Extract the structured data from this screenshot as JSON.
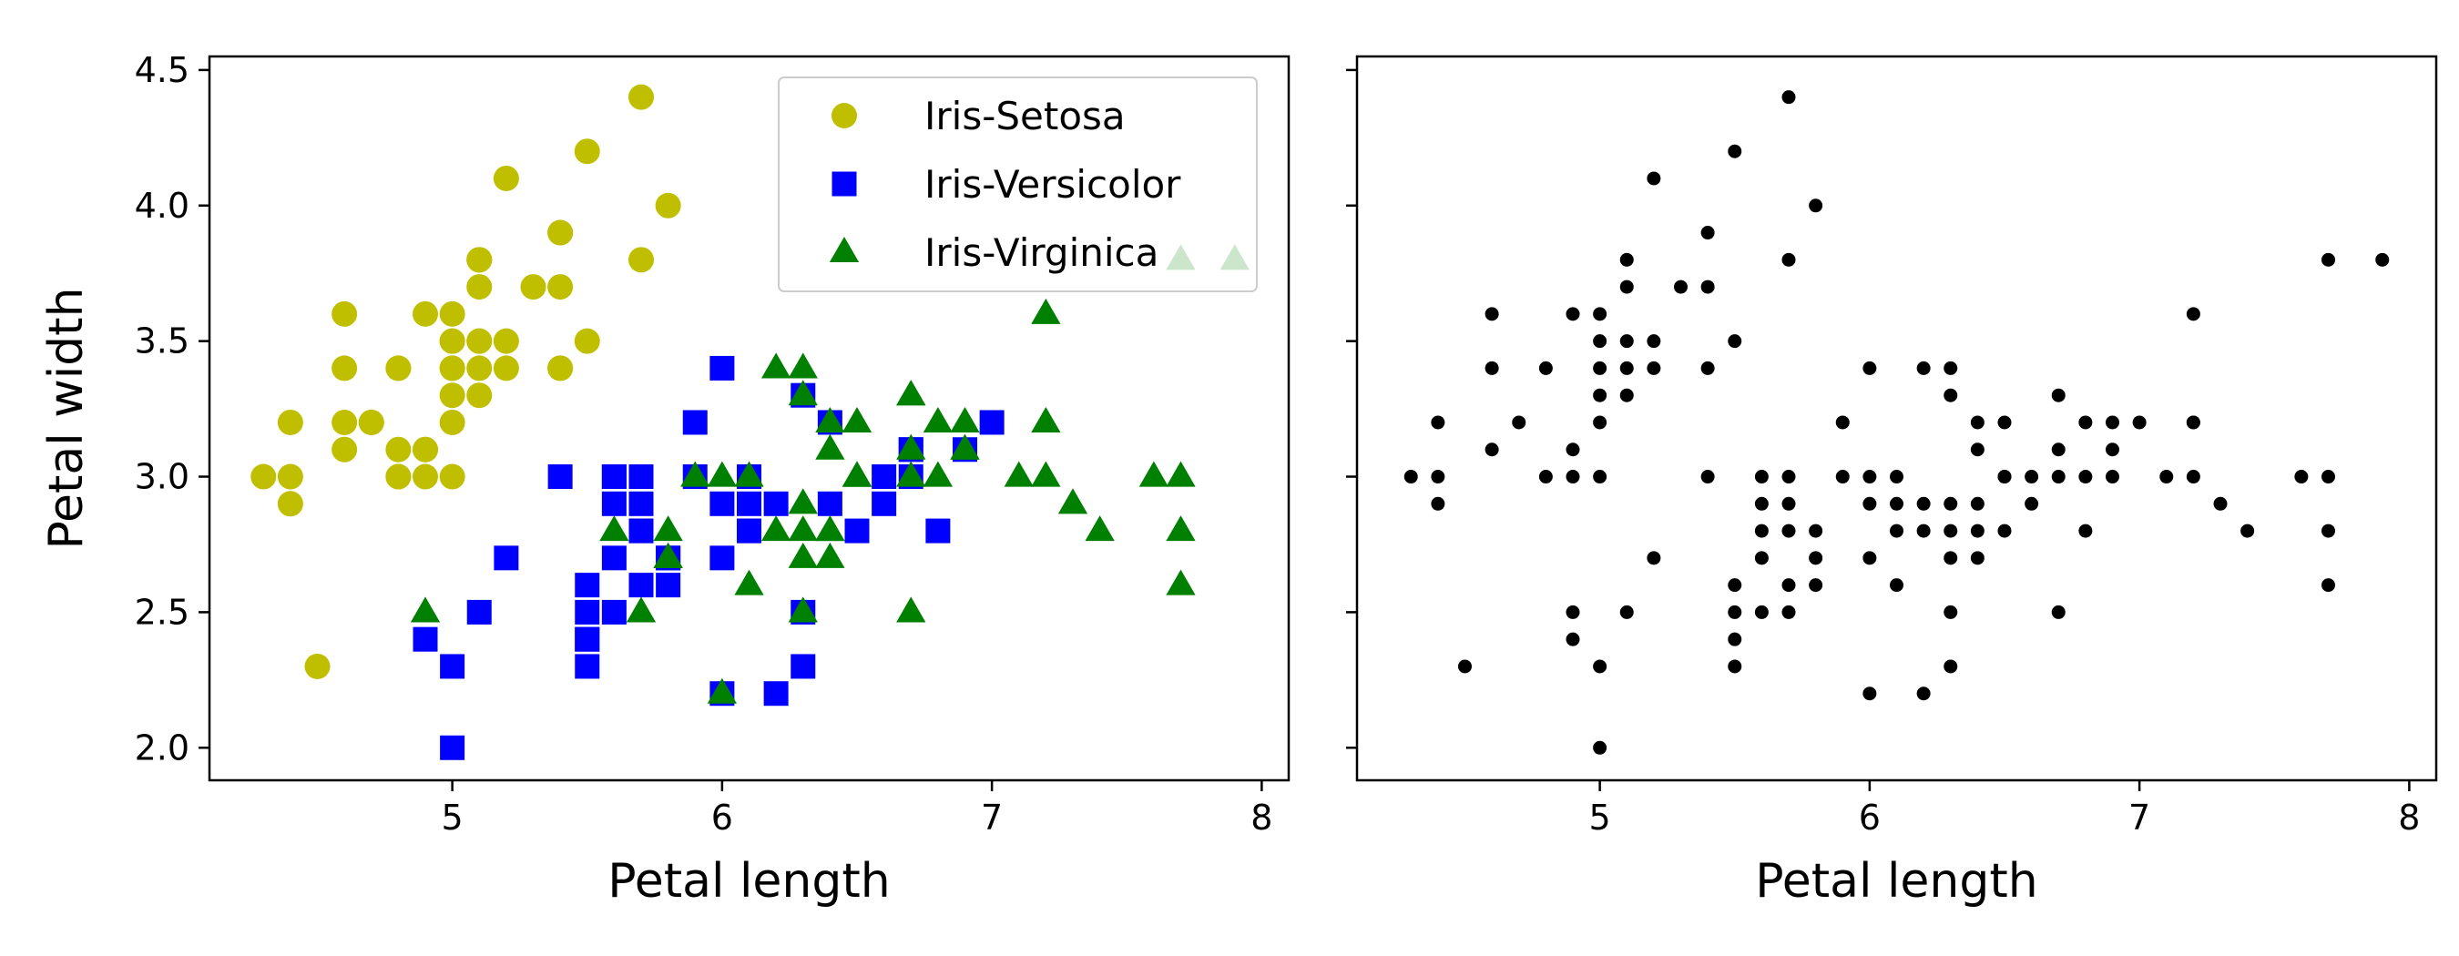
{
  "colors": {
    "setosa": "#bfbf00",
    "versicolor": "#0000ff",
    "virginica": "#008000",
    "unlabeled": "#000000",
    "frame": "#000000",
    "background": "#ffffff"
  },
  "chart_data": [
    {
      "type": "scatter",
      "xlabel": "Petal length",
      "ylabel": "Petal width",
      "xlim": [
        4.1,
        8.1
      ],
      "ylim": [
        1.88,
        4.55
      ],
      "xticks": [
        5,
        6,
        7,
        8
      ],
      "xtick_labels": [
        "5",
        "6",
        "7",
        "8"
      ],
      "yticks": [
        2.0,
        2.5,
        3.0,
        3.5,
        4.0,
        4.5
      ],
      "ytick_labels": [
        "2.0",
        "2.5",
        "3.0",
        "3.5",
        "4.0",
        "4.5"
      ],
      "grid": false,
      "legend_position": "top-right",
      "series": [
        {
          "name": "Iris-Setosa",
          "marker": "circle",
          "color_key": "setosa",
          "points": [
            [
              5.1,
              3.5
            ],
            [
              4.9,
              3.0
            ],
            [
              4.7,
              3.2
            ],
            [
              4.6,
              3.1
            ],
            [
              5.0,
              3.6
            ],
            [
              5.4,
              3.9
            ],
            [
              4.6,
              3.4
            ],
            [
              5.0,
              3.4
            ],
            [
              4.4,
              2.9
            ],
            [
              4.9,
              3.1
            ],
            [
              5.4,
              3.7
            ],
            [
              4.8,
              3.4
            ],
            [
              4.8,
              3.0
            ],
            [
              4.3,
              3.0
            ],
            [
              5.8,
              4.0
            ],
            [
              5.7,
              4.4
            ],
            [
              5.4,
              3.9
            ],
            [
              5.1,
              3.5
            ],
            [
              5.7,
              3.8
            ],
            [
              5.1,
              3.8
            ],
            [
              5.4,
              3.4
            ],
            [
              5.1,
              3.7
            ],
            [
              4.6,
              3.6
            ],
            [
              5.1,
              3.3
            ],
            [
              4.8,
              3.4
            ],
            [
              5.0,
              3.0
            ],
            [
              5.0,
              3.4
            ],
            [
              5.2,
              3.5
            ],
            [
              5.2,
              3.4
            ],
            [
              4.7,
              3.2
            ],
            [
              4.8,
              3.1
            ],
            [
              5.4,
              3.4
            ],
            [
              5.2,
              4.1
            ],
            [
              5.5,
              4.2
            ],
            [
              4.9,
              3.1
            ],
            [
              5.0,
              3.2
            ],
            [
              5.5,
              3.5
            ],
            [
              4.9,
              3.6
            ],
            [
              4.4,
              3.0
            ],
            [
              5.1,
              3.4
            ],
            [
              5.0,
              3.5
            ],
            [
              4.5,
              2.3
            ],
            [
              4.4,
              3.2
            ],
            [
              5.0,
              3.5
            ],
            [
              5.1,
              3.8
            ],
            [
              4.8,
              3.0
            ],
            [
              5.1,
              3.8
            ],
            [
              4.6,
              3.2
            ],
            [
              5.3,
              3.7
            ],
            [
              5.0,
              3.3
            ]
          ]
        },
        {
          "name": "Iris-Versicolor",
          "marker": "square",
          "color_key": "versicolor",
          "points": [
            [
              7.0,
              3.2
            ],
            [
              6.4,
              3.2
            ],
            [
              6.9,
              3.1
            ],
            [
              5.5,
              2.3
            ],
            [
              6.5,
              2.8
            ],
            [
              5.7,
              2.8
            ],
            [
              6.3,
              3.3
            ],
            [
              4.9,
              2.4
            ],
            [
              6.6,
              2.9
            ],
            [
              5.2,
              2.7
            ],
            [
              5.0,
              2.0
            ],
            [
              5.9,
              3.0
            ],
            [
              6.0,
              2.2
            ],
            [
              6.1,
              2.9
            ],
            [
              5.6,
              2.9
            ],
            [
              6.7,
              3.1
            ],
            [
              5.6,
              3.0
            ],
            [
              5.8,
              2.7
            ],
            [
              6.2,
              2.2
            ],
            [
              5.6,
              2.5
            ],
            [
              5.9,
              3.2
            ],
            [
              6.1,
              2.8
            ],
            [
              6.3,
              2.5
            ],
            [
              6.1,
              2.8
            ],
            [
              6.4,
              2.9
            ],
            [
              6.6,
              3.0
            ],
            [
              6.8,
              2.8
            ],
            [
              6.7,
              3.0
            ],
            [
              6.0,
              2.9
            ],
            [
              5.7,
              2.6
            ],
            [
              5.5,
              2.4
            ],
            [
              5.5,
              2.4
            ],
            [
              5.8,
              2.7
            ],
            [
              6.0,
              2.7
            ],
            [
              5.4,
              3.0
            ],
            [
              6.0,
              3.4
            ],
            [
              6.7,
              3.1
            ],
            [
              6.3,
              2.3
            ],
            [
              5.6,
              3.0
            ],
            [
              5.5,
              2.5
            ],
            [
              5.5,
              2.6
            ],
            [
              6.1,
              3.0
            ],
            [
              5.8,
              2.6
            ],
            [
              5.0,
              2.3
            ],
            [
              5.6,
              2.7
            ],
            [
              5.7,
              3.0
            ],
            [
              5.7,
              2.9
            ],
            [
              6.2,
              2.9
            ],
            [
              5.1,
              2.5
            ],
            [
              5.7,
              2.8
            ]
          ]
        },
        {
          "name": "Iris-Virginica",
          "marker": "triangle",
          "color_key": "virginica",
          "points": [
            [
              6.3,
              3.3
            ],
            [
              5.8,
              2.7
            ],
            [
              7.1,
              3.0
            ],
            [
              6.3,
              2.9
            ],
            [
              6.5,
              3.0
            ],
            [
              7.6,
              3.0
            ],
            [
              4.9,
              2.5
            ],
            [
              7.3,
              2.9
            ],
            [
              6.7,
              2.5
            ],
            [
              7.2,
              3.6
            ],
            [
              6.5,
              3.2
            ],
            [
              6.4,
              2.7
            ],
            [
              6.8,
              3.0
            ],
            [
              5.7,
              2.5
            ],
            [
              5.8,
              2.8
            ],
            [
              6.4,
              3.2
            ],
            [
              6.5,
              3.0
            ],
            [
              7.7,
              3.8
            ],
            [
              7.7,
              2.6
            ],
            [
              6.0,
              2.2
            ],
            [
              6.9,
              3.2
            ],
            [
              5.6,
              2.8
            ],
            [
              7.7,
              2.8
            ],
            [
              6.3,
              2.7
            ],
            [
              6.7,
              3.3
            ],
            [
              7.2,
              3.2
            ],
            [
              6.2,
              2.8
            ],
            [
              6.1,
              3.0
            ],
            [
              6.4,
              2.8
            ],
            [
              7.2,
              3.0
            ],
            [
              7.4,
              2.8
            ],
            [
              7.9,
              3.8
            ],
            [
              6.4,
              2.8
            ],
            [
              6.3,
              2.8
            ],
            [
              6.1,
              2.6
            ],
            [
              7.7,
              3.0
            ],
            [
              6.3,
              3.4
            ],
            [
              6.4,
              3.1
            ],
            [
              6.0,
              3.0
            ],
            [
              6.9,
              3.1
            ],
            [
              6.7,
              3.1
            ],
            [
              6.9,
              3.1
            ],
            [
              5.8,
              2.7
            ],
            [
              6.8,
              3.2
            ],
            [
              6.7,
              3.3
            ],
            [
              6.7,
              3.0
            ],
            [
              6.3,
              2.5
            ],
            [
              6.5,
              3.0
            ],
            [
              6.2,
              3.4
            ],
            [
              5.9,
              3.0
            ]
          ]
        }
      ]
    },
    {
      "type": "scatter",
      "xlabel": "Petal length",
      "ylabel": "",
      "xlim": [
        4.1,
        8.1
      ],
      "ylim": [
        1.88,
        4.55
      ],
      "xticks": [
        5,
        6,
        7,
        8
      ],
      "xtick_labels": [
        "5",
        "6",
        "7",
        "8"
      ],
      "yticks": [
        2.0,
        2.5,
        3.0,
        3.5,
        4.0,
        4.5
      ],
      "grid": false,
      "series": [
        {
          "marker": "dot",
          "color_key": "unlabeled",
          "points": [
            [
              5.1,
              3.5
            ],
            [
              4.9,
              3.0
            ],
            [
              4.7,
              3.2
            ],
            [
              4.6,
              3.1
            ],
            [
              5.0,
              3.6
            ],
            [
              5.4,
              3.9
            ],
            [
              4.6,
              3.4
            ],
            [
              5.0,
              3.4
            ],
            [
              4.4,
              2.9
            ],
            [
              4.9,
              3.1
            ],
            [
              5.4,
              3.7
            ],
            [
              4.8,
              3.4
            ],
            [
              4.8,
              3.0
            ],
            [
              4.3,
              3.0
            ],
            [
              5.8,
              4.0
            ],
            [
              5.7,
              4.4
            ],
            [
              5.7,
              3.8
            ],
            [
              5.1,
              3.8
            ],
            [
              5.4,
              3.4
            ],
            [
              5.1,
              3.7
            ],
            [
              4.6,
              3.6
            ],
            [
              5.1,
              3.3
            ],
            [
              5.0,
              3.0
            ],
            [
              5.2,
              3.5
            ],
            [
              5.2,
              3.4
            ],
            [
              5.2,
              4.1
            ],
            [
              5.5,
              4.2
            ],
            [
              5.0,
              3.2
            ],
            [
              5.5,
              3.5
            ],
            [
              4.9,
              3.6
            ],
            [
              4.4,
              3.0
            ],
            [
              5.1,
              3.4
            ],
            [
              5.0,
              3.5
            ],
            [
              4.5,
              2.3
            ],
            [
              4.4,
              3.2
            ],
            [
              5.3,
              3.7
            ],
            [
              5.0,
              3.3
            ],
            [
              7.0,
              3.2
            ],
            [
              6.4,
              3.2
            ],
            [
              6.9,
              3.1
            ],
            [
              5.5,
              2.3
            ],
            [
              6.5,
              2.8
            ],
            [
              5.7,
              2.8
            ],
            [
              6.3,
              3.3
            ],
            [
              4.9,
              2.4
            ],
            [
              6.6,
              2.9
            ],
            [
              5.2,
              2.7
            ],
            [
              5.0,
              2.0
            ],
            [
              5.9,
              3.0
            ],
            [
              6.0,
              2.2
            ],
            [
              6.1,
              2.9
            ],
            [
              5.6,
              2.9
            ],
            [
              6.7,
              3.1
            ],
            [
              5.6,
              3.0
            ],
            [
              5.8,
              2.7
            ],
            [
              6.2,
              2.2
            ],
            [
              5.6,
              2.5
            ],
            [
              5.9,
              3.2
            ],
            [
              6.1,
              2.8
            ],
            [
              6.3,
              2.5
            ],
            [
              6.4,
              2.9
            ],
            [
              6.6,
              3.0
            ],
            [
              6.8,
              2.8
            ],
            [
              6.7,
              3.0
            ],
            [
              6.0,
              2.9
            ],
            [
              5.7,
              2.6
            ],
            [
              5.5,
              2.4
            ],
            [
              6.0,
              2.7
            ],
            [
              5.4,
              3.0
            ],
            [
              6.0,
              3.4
            ],
            [
              6.3,
              2.3
            ],
            [
              5.5,
              2.5
            ],
            [
              5.5,
              2.6
            ],
            [
              6.1,
              3.0
            ],
            [
              5.8,
              2.6
            ],
            [
              5.0,
              2.3
            ],
            [
              5.6,
              2.7
            ],
            [
              5.7,
              3.0
            ],
            [
              5.7,
              2.9
            ],
            [
              6.2,
              2.9
            ],
            [
              5.1,
              2.5
            ],
            [
              7.1,
              3.0
            ],
            [
              6.3,
              2.9
            ],
            [
              6.5,
              3.0
            ],
            [
              7.6,
              3.0
            ],
            [
              4.9,
              2.5
            ],
            [
              7.3,
              2.9
            ],
            [
              6.7,
              2.5
            ],
            [
              7.2,
              3.6
            ],
            [
              6.5,
              3.2
            ],
            [
              6.4,
              2.7
            ],
            [
              6.8,
              3.0
            ],
            [
              5.7,
              2.5
            ],
            [
              5.8,
              2.8
            ],
            [
              7.7,
              3.8
            ],
            [
              7.7,
              2.6
            ],
            [
              6.9,
              3.2
            ],
            [
              5.6,
              2.8
            ],
            [
              7.7,
              2.8
            ],
            [
              6.3,
              2.7
            ],
            [
              6.7,
              3.3
            ],
            [
              7.2,
              3.2
            ],
            [
              6.2,
              2.8
            ],
            [
              6.4,
              2.8
            ],
            [
              7.2,
              3.0
            ],
            [
              7.4,
              2.8
            ],
            [
              7.9,
              3.8
            ],
            [
              6.3,
              2.8
            ],
            [
              6.1,
              2.6
            ],
            [
              7.7,
              3.0
            ],
            [
              6.3,
              3.4
            ],
            [
              6.4,
              3.1
            ],
            [
              6.0,
              3.0
            ],
            [
              6.8,
              3.2
            ],
            [
              6.5,
              3.0
            ],
            [
              6.2,
              3.4
            ],
            [
              6.9,
              3.0
            ],
            [
              7.2,
              3.2
            ]
          ]
        }
      ]
    }
  ]
}
